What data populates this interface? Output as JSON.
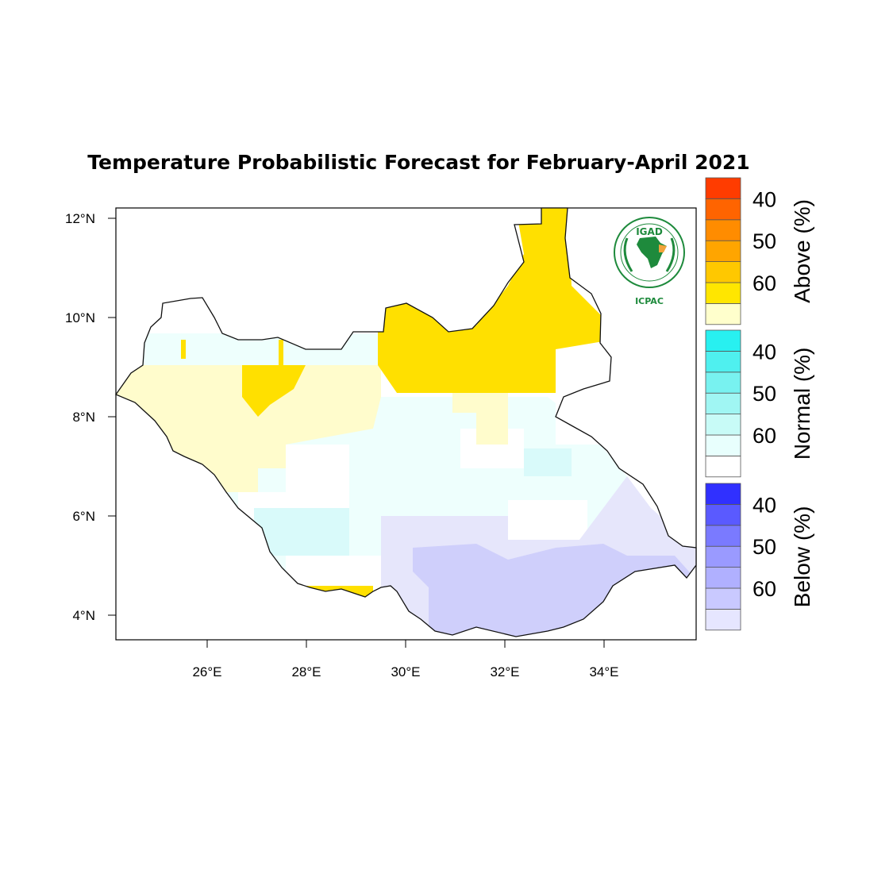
{
  "title": "Temperature Probabilistic Forecast for February-April 2021",
  "axes": {
    "lat_ticks": [
      "12°N",
      "10°N",
      "8°N",
      "6°N",
      "4°N"
    ],
    "lon_ticks": [
      "26°E",
      "28°E",
      "30°E",
      "32°E",
      "34°E"
    ]
  },
  "logo": {
    "org": "IGAD",
    "name": "ICPAC"
  },
  "legend": [
    {
      "title": "Above (%)",
      "labels": [
        "60",
        "50",
        "40"
      ],
      "colors": [
        "#ffffcc",
        "#ffe600",
        "#ffc800",
        "#ffa500",
        "#ff8c00",
        "#ff6400",
        "#ff3c00"
      ]
    },
    {
      "title": "Normal (%)",
      "labels": [
        "60",
        "50",
        "40"
      ],
      "colors": [
        "#ffffff",
        "#e8fffd",
        "#c8fbf7",
        "#a0f6f3",
        "#78f2f0",
        "#4ff0ef",
        "#28f0f0"
      ]
    },
    {
      "title": "Below (%)",
      "labels": [
        "60",
        "50",
        "40"
      ],
      "colors": [
        "#e6e6ff",
        "#c9c9ff",
        "#b0b0ff",
        "#9a9aff",
        "#7a7aff",
        "#5a5aff",
        "#3030ff"
      ]
    }
  ],
  "colors": {
    "above_40": "#fffccc",
    "above_50": "#ffe000",
    "normal_40": "#eefffd",
    "normal_45": "#d9fafa",
    "below_40": "#e6e6fb",
    "below_45": "#cfcffb"
  }
}
